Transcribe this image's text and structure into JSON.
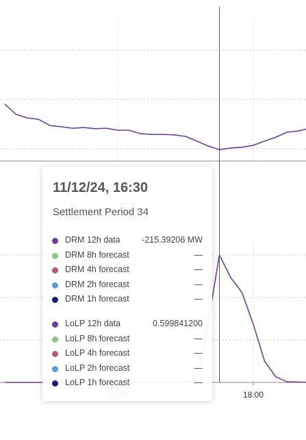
{
  "chart_data": [
    {
      "type": "line",
      "color": "#6b3f95",
      "categories": [
        null,
        null,
        null,
        null,
        null,
        null,
        null,
        null,
        null,
        null,
        null,
        null,
        null,
        null,
        null,
        null,
        null,
        null,
        null,
        null,
        null,
        null,
        null,
        null,
        null,
        null,
        null,
        null
      ],
      "values": [
        -196.9,
        -201.1,
        -202.5,
        -203.1,
        -205.6,
        -206.1,
        -206.7,
        -206.4,
        -206.9,
        -206.7,
        -207.5,
        -207.5,
        -208.9,
        -209.2,
        -209.2,
        -209.4,
        -210,
        -211.9,
        -213.9,
        -215.39206,
        -214.7,
        -214.4,
        -213.6,
        -211.9,
        -210.3,
        -208.3,
        -207.8,
        -206.7
      ],
      "ylim": [
        -220,
        -157.5
      ],
      "yticks": [
        -215,
        -195,
        -175
      ],
      "grid": true
    },
    {
      "type": "line",
      "color": "#6b3f95",
      "categories": [
        null,
        null,
        null,
        null,
        null,
        null,
        null,
        null,
        null,
        null,
        "12:00",
        null,
        null,
        null,
        null,
        null,
        null,
        null,
        null,
        null,
        null,
        null,
        "18:00",
        null,
        null,
        null,
        null,
        null
      ],
      "values": [
        0,
        0,
        0,
        0,
        0,
        0,
        0,
        0,
        0,
        0,
        0,
        0,
        0,
        0,
        0,
        0,
        0,
        0.01,
        0.28,
        0.5998412,
        0.494,
        0.423,
        0.274,
        0.1,
        0.026,
        0.003,
        0.002,
        0
      ],
      "ylim": [
        0,
        0.7
      ],
      "yticks": [
        0,
        0.2,
        0.4,
        0.6
      ],
      "grid": true
    }
  ],
  "tooltip": {
    "title": "11/12/24, 16:30",
    "subtitle": "Settlement Period 34",
    "groups": [
      [
        {
          "label": "DRM 12h data",
          "color": "#6b3f95",
          "value": "-215.39206 MW"
        },
        {
          "label": "DRM 8h forecast",
          "color": "#8cc68c",
          "value": "—"
        },
        {
          "label": "DRM 4h forecast",
          "color": "#b5587a",
          "value": "—"
        },
        {
          "label": "DRM 2h forecast",
          "color": "#5b9bd5",
          "value": "—"
        },
        {
          "label": "DRM 1h forecast",
          "color": "#1a1a7a",
          "value": "—"
        }
      ],
      [
        {
          "label": "LoLP 12h data",
          "color": "#6b3f95",
          "value": "0.599841200"
        },
        {
          "label": "LoLP 8h forecast",
          "color": "#8cc68c",
          "value": "—"
        },
        {
          "label": "LoLP 4h forecast",
          "color": "#b5587a",
          "value": "—"
        },
        {
          "label": "LoLP 2h forecast",
          "color": "#5b9bd5",
          "value": "—"
        },
        {
          "label": "LoLP 1h forecast",
          "color": "#1a1a7a",
          "value": "—"
        }
      ]
    ]
  }
}
